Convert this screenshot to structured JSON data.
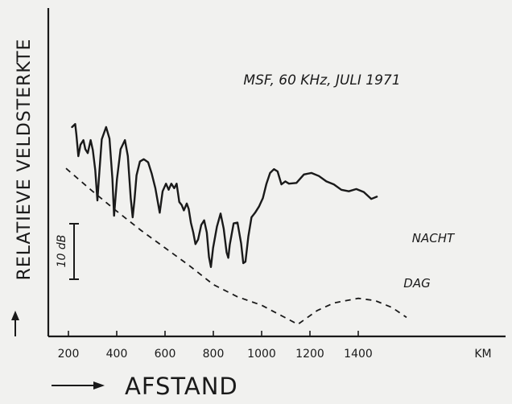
{
  "chart_data": {
    "type": "line",
    "title": "MSF, 60 KHz, JULI 1971",
    "xlabel": "AFSTAND",
    "ylabel": "RELATIEVE VELDSTERKTE",
    "x_unit": "KM",
    "scale_bar_label": "10 dB",
    "scale_bar_db": 10,
    "xlim": [
      100,
      1650
    ],
    "ylim": [
      -30,
      5
    ],
    "x_ticks": [
      200,
      400,
      600,
      800,
      1000,
      1200,
      1400
    ],
    "x_tick_labels": [
      "200",
      "400",
      "600",
      "800",
      "1000",
      "1200",
      "1400"
    ],
    "grid": false,
    "series": [
      {
        "name": "NACHT",
        "style": "solid",
        "color": "#1a1a1a",
        "points": [
          [
            215,
            -2.2
          ],
          [
            228,
            -1.8
          ],
          [
            233,
            -3.2
          ],
          [
            241,
            -6.0
          ],
          [
            250,
            -4.5
          ],
          [
            262,
            -3.9
          ],
          [
            270,
            -5.1
          ],
          [
            280,
            -5.6
          ],
          [
            292,
            -3.9
          ],
          [
            301,
            -5.2
          ],
          [
            311,
            -7.8
          ],
          [
            320,
            -11.8
          ],
          [
            326,
            -9.0
          ],
          [
            338,
            -3.8
          ],
          [
            356,
            -2.2
          ],
          [
            370,
            -3.7
          ],
          [
            382,
            -8.9
          ],
          [
            389,
            -13.8
          ],
          [
            401,
            -9.0
          ],
          [
            416,
            -5.1
          ],
          [
            434,
            -3.9
          ],
          [
            446,
            -6.0
          ],
          [
            458,
            -11.5
          ],
          [
            466,
            -14.0
          ],
          [
            473,
            -11.9
          ],
          [
            482,
            -8.5
          ],
          [
            496,
            -6.7
          ],
          [
            512,
            -6.4
          ],
          [
            530,
            -6.8
          ],
          [
            545,
            -8.3
          ],
          [
            560,
            -10.2
          ],
          [
            578,
            -13.4
          ],
          [
            590,
            -10.6
          ],
          [
            604,
            -9.6
          ],
          [
            615,
            -10.4
          ],
          [
            626,
            -9.6
          ],
          [
            638,
            -10.2
          ],
          [
            648,
            -9.6
          ],
          [
            659,
            -12.0
          ],
          [
            669,
            -12.4
          ],
          [
            678,
            -13.1
          ],
          [
            690,
            -12.2
          ],
          [
            698,
            -12.9
          ],
          [
            707,
            -14.7
          ],
          [
            717,
            -16.0
          ],
          [
            726,
            -17.5
          ],
          [
            737,
            -16.9
          ],
          [
            750,
            -15.0
          ],
          [
            762,
            -14.4
          ],
          [
            773,
            -16.0
          ],
          [
            782,
            -19.2
          ],
          [
            790,
            -20.5
          ],
          [
            799,
            -18.0
          ],
          [
            815,
            -15.2
          ],
          [
            830,
            -13.5
          ],
          [
            843,
            -15.5
          ],
          [
            855,
            -18.6
          ],
          [
            862,
            -19.3
          ],
          [
            868,
            -17.6
          ],
          [
            884,
            -14.8
          ],
          [
            900,
            -14.7
          ],
          [
            915,
            -17.4
          ],
          [
            924,
            -20.0
          ],
          [
            933,
            -19.8
          ],
          [
            945,
            -16.5
          ],
          [
            958,
            -14.0
          ],
          [
            973,
            -13.4
          ],
          [
            989,
            -12.6
          ],
          [
            1005,
            -11.5
          ],
          [
            1020,
            -9.6
          ],
          [
            1035,
            -8.2
          ],
          [
            1051,
            -7.7
          ],
          [
            1066,
            -8.0
          ],
          [
            1082,
            -9.7
          ],
          [
            1098,
            -9.3
          ],
          [
            1113,
            -9.6
          ],
          [
            1144,
            -9.5
          ],
          [
            1175,
            -8.4
          ],
          [
            1206,
            -8.2
          ],
          [
            1237,
            -8.6
          ],
          [
            1268,
            -9.3
          ],
          [
            1299,
            -9.7
          ],
          [
            1330,
            -10.4
          ],
          [
            1361,
            -10.6
          ],
          [
            1392,
            -10.3
          ],
          [
            1423,
            -10.7
          ],
          [
            1454,
            -11.6
          ],
          [
            1477,
            -11.3
          ]
        ]
      },
      {
        "name": "DAG",
        "style": "dashed",
        "color": "#1a1a1a",
        "points": [
          [
            190,
            -7.6
          ],
          [
            300,
            -10.6
          ],
          [
            400,
            -13.2
          ],
          [
            500,
            -15.7
          ],
          [
            600,
            -18.0
          ],
          [
            700,
            -20.3
          ],
          [
            800,
            -22.8
          ],
          [
            900,
            -24.4
          ],
          [
            1000,
            -25.5
          ],
          [
            1090,
            -27.0
          ],
          [
            1150,
            -28.0
          ],
          [
            1230,
            -26.2
          ],
          [
            1300,
            -25.2
          ],
          [
            1400,
            -24.6
          ],
          [
            1470,
            -24.9
          ],
          [
            1540,
            -25.8
          ],
          [
            1600,
            -27.1
          ]
        ]
      }
    ],
    "annotations": [
      {
        "text": "NACHT",
        "series": "NACHT"
      },
      {
        "text": "DAG",
        "series": "DAG"
      }
    ]
  }
}
